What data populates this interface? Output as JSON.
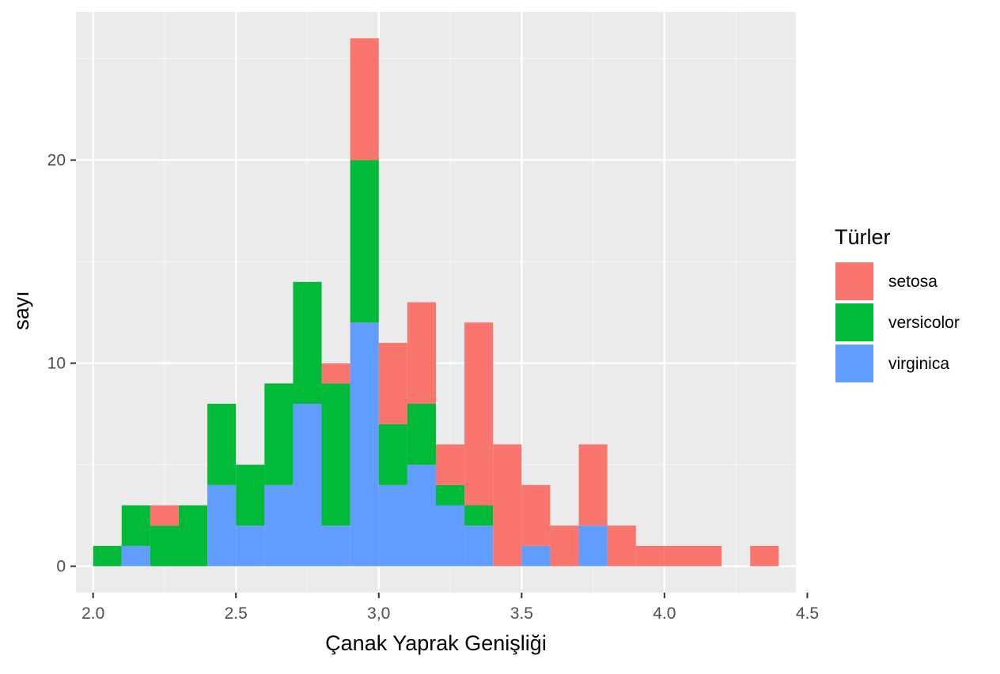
{
  "chart_data": {
    "type": "bar",
    "subtype": "stacked-histogram",
    "title": "",
    "xlabel": "Çanak Yaprak Genişliği",
    "ylabel": "sayı",
    "xlim": [
      1.94,
      4.46
    ],
    "ylim": [
      -1.3,
      27.3
    ],
    "x_ticks": [
      2.0,
      2.5,
      3.0,
      3.5,
      4.0,
      4.5
    ],
    "x_tick_labels": [
      "2.0",
      "2.5",
      "3,0",
      "3.5",
      "4.0",
      "4.5"
    ],
    "y_ticks": [
      0,
      10,
      20
    ],
    "y_tick_labels": [
      "0",
      "10",
      "20"
    ],
    "grid": true,
    "legend": {
      "title": "Türler",
      "position": "right"
    },
    "bin_starts": [
      2.0,
      2.1,
      2.2,
      2.3,
      2.4,
      2.5,
      2.6,
      2.7,
      2.8,
      2.9,
      3.0,
      3.1,
      3.2,
      3.3,
      3.4,
      3.5,
      3.6,
      3.7,
      3.8,
      3.9,
      4.0,
      4.1,
      4.2,
      4.3
    ],
    "bin_width": 0.1,
    "stack_order": [
      "virginica",
      "versicolor",
      "setosa"
    ],
    "series": [
      {
        "name": "setosa",
        "color": "#F8766D",
        "values": [
          0,
          0,
          1,
          0,
          0,
          0,
          0,
          0,
          1,
          6,
          4,
          5,
          2,
          9,
          6,
          3,
          2,
          4,
          2,
          1,
          1,
          1,
          0,
          1
        ]
      },
      {
        "name": "versicolor",
        "color": "#00BA38",
        "values": [
          1,
          2,
          2,
          3,
          4,
          3,
          5,
          6,
          7,
          8,
          3,
          3,
          1,
          1,
          0,
          0,
          0,
          0,
          0,
          0,
          0,
          0,
          0,
          0
        ]
      },
      {
        "name": "virginica",
        "color": "#619CFF",
        "values": [
          0,
          1,
          0,
          0,
          4,
          2,
          4,
          8,
          2,
          12,
          4,
          5,
          3,
          2,
          0,
          1,
          0,
          2,
          0,
          0,
          0,
          0,
          0,
          0
        ]
      }
    ]
  },
  "colors": {
    "panel_background": "#EBEBEB",
    "grid_major": "#FFFFFF",
    "grid_minor": "#F5F5F5",
    "tick_text": "#4D4D4D",
    "tick_mark": "#333333"
  }
}
